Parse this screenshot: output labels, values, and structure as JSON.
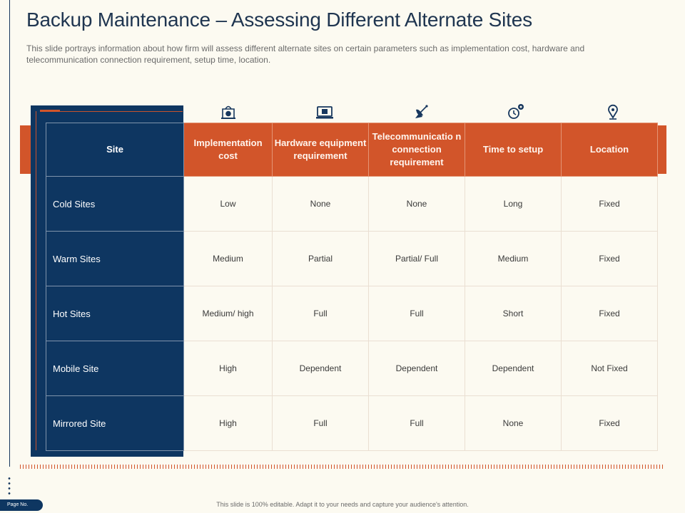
{
  "title": "Backup Maintenance – Assessing Different Alternate Sites",
  "subtitle": "This slide portrays information about how firm will assess different alternate sites on certain parameters such as implementation cost, hardware and telecommunication connection requirement, setup time, location.",
  "table": {
    "headers": [
      "Site",
      "Implementation cost",
      "Hardware equipment requirement",
      "Telecommunicatio n connection requirement",
      "Time to setup",
      "Location"
    ],
    "header_icons": [
      "money-bag-icon",
      "laptop-chip-icon",
      "satellite-dish-icon",
      "clock-gear-icon",
      "location-pin-icon"
    ],
    "rows": [
      {
        "site": "Cold Sites",
        "cells": [
          "Low",
          "None",
          "None",
          "Long",
          "Fixed"
        ]
      },
      {
        "site": "Warm Sites",
        "cells": [
          "Medium",
          "Partial",
          "Partial/ Full",
          "Medium",
          "Fixed"
        ]
      },
      {
        "site": "Hot Sites",
        "cells": [
          "Medium/ high",
          "Full",
          "Full",
          "Short",
          "Fixed"
        ]
      },
      {
        "site": "Mobile Site",
        "cells": [
          "High",
          "Dependent",
          "Dependent",
          "Dependent",
          "Not Fixed"
        ]
      },
      {
        "site": "Mirrored Site",
        "cells": [
          "High",
          "Full",
          "Full",
          "None",
          "Fixed"
        ]
      }
    ]
  },
  "page_label": "Page No.",
  "footer": "This slide is 100% editable. Adapt it to your needs and capture your audience's attention.",
  "colors": {
    "navy": "#0e3661",
    "orange": "#d2552a",
    "background": "#fcfaf1"
  }
}
